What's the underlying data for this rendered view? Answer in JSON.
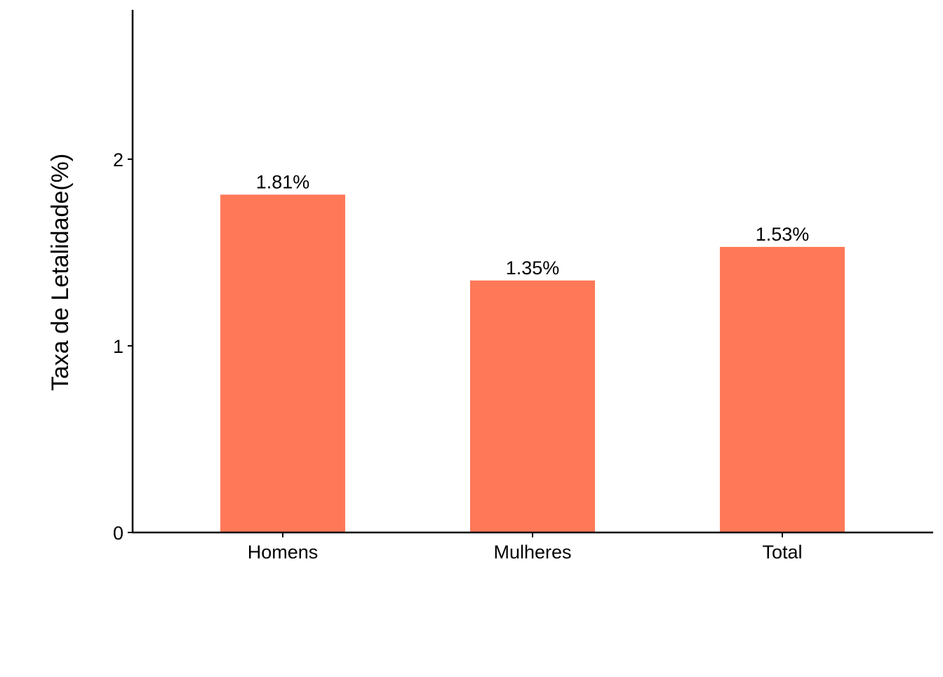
{
  "chart_data": {
    "type": "bar",
    "title": "",
    "xlabel": "",
    "ylabel": "Taxa de Letalidade(%)",
    "categories": [
      "Homens",
      "Mulheres",
      "Total"
    ],
    "values": [
      1.81,
      1.35,
      1.53
    ],
    "data_labels": [
      "1.81%",
      "1.35%",
      "1.53%"
    ],
    "ylim": [
      0,
      2.8
    ],
    "yticks": [
      0,
      1,
      2
    ],
    "ytick_labels": [
      "0",
      "1",
      "2"
    ],
    "bar_color": "#FF7959",
    "grid": false,
    "legend": "none"
  }
}
